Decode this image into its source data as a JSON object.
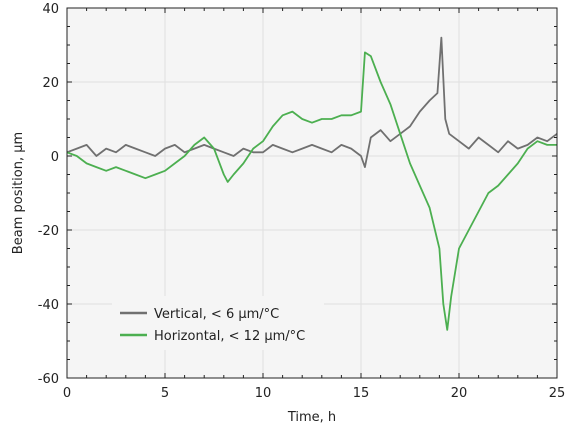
{
  "chart_data": {
    "type": "line",
    "title": "",
    "xlabel": "Time, h",
    "ylabel": "Beam position, µm",
    "xlim": [
      0,
      25
    ],
    "ylim": [
      -60,
      40
    ],
    "xticks": [
      0,
      5,
      10,
      15,
      20,
      25
    ],
    "yticks": [
      -60,
      -40,
      -20,
      0,
      20,
      40
    ],
    "grid": true,
    "legend_position": "bottom-left",
    "series": [
      {
        "name": "Vertical,  < 6 µm/°C",
        "color": "#707070",
        "x": [
          0,
          0.5,
          1,
          1.5,
          2,
          2.5,
          3,
          3.5,
          4,
          4.5,
          5,
          5.5,
          6,
          6.5,
          7,
          7.5,
          8,
          8.5,
          9,
          9.5,
          10,
          10.5,
          11,
          11.5,
          12,
          12.5,
          13,
          13.5,
          14,
          14.5,
          15,
          15.2,
          15.5,
          16,
          16.5,
          17,
          17.5,
          18,
          18.5,
          18.9,
          19.1,
          19.3,
          19.5,
          20,
          20.5,
          21,
          21.5,
          22,
          22.5,
          23,
          23.5,
          24,
          24.5,
          25
        ],
        "values": [
          1,
          2,
          3,
          0,
          2,
          1,
          3,
          2,
          1,
          0,
          2,
          3,
          1,
          2,
          3,
          2,
          1,
          0,
          2,
          1,
          1,
          3,
          2,
          1,
          2,
          3,
          2,
          1,
          3,
          2,
          0,
          -3,
          5,
          7,
          4,
          6,
          8,
          12,
          15,
          17,
          32,
          10,
          6,
          4,
          2,
          5,
          3,
          1,
          4,
          2,
          3,
          5,
          4,
          6
        ]
      },
      {
        "name": "Horizontal,  < 12 µm/°C",
        "color": "#4caf50",
        "x": [
          0,
          0.5,
          1,
          1.5,
          2,
          2.5,
          3,
          3.5,
          4,
          4.5,
          5,
          5.5,
          6,
          6.5,
          7,
          7.5,
          8,
          8.2,
          8.5,
          9,
          9.5,
          10,
          10.5,
          11,
          11.5,
          12,
          12.5,
          13,
          13.5,
          14,
          14.5,
          15,
          15.2,
          15.5,
          16,
          16.5,
          17,
          17.5,
          18,
          18.5,
          19,
          19.2,
          19.4,
          19.6,
          20,
          20.5,
          21,
          21.5,
          22,
          22.5,
          23,
          23.5,
          24,
          24.5,
          25
        ],
        "values": [
          1,
          0,
          -2,
          -3,
          -4,
          -3,
          -4,
          -5,
          -6,
          -5,
          -4,
          -2,
          0,
          3,
          5,
          2,
          -5,
          -7,
          -5,
          -2,
          2,
          4,
          8,
          11,
          12,
          10,
          9,
          10,
          10,
          11,
          11,
          12,
          28,
          27,
          20,
          14,
          6,
          -2,
          -8,
          -14,
          -25,
          -40,
          -47,
          -38,
          -25,
          -20,
          -15,
          -10,
          -8,
          -5,
          -2,
          2,
          4,
          3,
          3
        ]
      }
    ]
  },
  "colors": {
    "plot_background": "#f5f5f5",
    "grid": "#e0e0e0",
    "axis": "#222222"
  }
}
